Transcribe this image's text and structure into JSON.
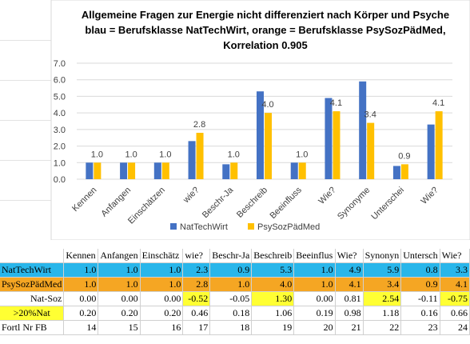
{
  "chart_data": {
    "type": "bar",
    "title": "Allgemeine Fragen zur Energie nicht differenziert nach Körper und  Psyche",
    "subtitle": "blau = Berufsklasse NatTechWirt, orange = Berufsklasse PsySozPädMed,",
    "subtitle2": "Korrelation 0.905",
    "categories": [
      "Kennen",
      "Anfangen",
      "Einschätzen",
      "wie?",
      "Beschr-Ja",
      "Beschreib",
      "Beeinfluss",
      "Wie?",
      "Synonyme",
      "Unterschei",
      "Wie?"
    ],
    "series": [
      {
        "name": "NatTechWirt",
        "color": "#4472c4",
        "values": [
          1.0,
          1.0,
          1.0,
          2.3,
          0.9,
          5.3,
          1.0,
          4.9,
          5.9,
          0.8,
          3.3
        ]
      },
      {
        "name": "PsySozPädMed",
        "color": "#ffc000",
        "values": [
          1.0,
          1.0,
          1.0,
          2.8,
          1.0,
          4.0,
          1.0,
          4.1,
          3.4,
          0.9,
          4.1
        ]
      }
    ],
    "data_labels": [
      "1.0",
      "1.0",
      "1.0",
      "2.8",
      "1.0",
      "4.0",
      "1.0",
      "4.1",
      "3.4",
      "0.9",
      "4.1"
    ],
    "y_ticks": [
      "0.0",
      "1.0",
      "2.0",
      "3.0",
      "4.0",
      "5.0",
      "6.0",
      "7.0"
    ],
    "ylim": [
      0,
      7
    ],
    "grid": true,
    "legend_position": "bottom"
  },
  "table": {
    "headers": [
      "",
      "Kennen",
      "Anfangen",
      "Einschätz",
      "wie?",
      "Beschr-Ja",
      "Beschreib",
      "Beeinflus",
      "Wie?",
      "Synonyn",
      "Untersch",
      "Wie?"
    ],
    "rows": [
      {
        "label": "NatTechWirt",
        "cells": [
          "1.0",
          "1.0",
          "1.0",
          "2.3",
          "0.9",
          "5.3",
          "1.0",
          "4.9",
          "5.9",
          "0.8",
          "3.3"
        ]
      },
      {
        "label": "PsySozPädMed",
        "cells": [
          "1.0",
          "1.0",
          "1.0",
          "2.8",
          "1.0",
          "4.0",
          "1.0",
          "4.1",
          "3.4",
          "0.9",
          "4.1"
        ]
      },
      {
        "label": "Nat-Soz",
        "cells": [
          "0.00",
          "0.00",
          "0.00",
          "-0.52",
          "-0.05",
          "1.30",
          "0.00",
          "0.81",
          "2.54",
          "-0.11",
          "-0.75"
        ]
      },
      {
        "label": ">20%Nat",
        "cells": [
          "0.20",
          "0.20",
          "0.20",
          "0.46",
          "0.18",
          "1.06",
          "0.19",
          "0.98",
          "1.18",
          "0.16",
          "0.66"
        ]
      },
      {
        "label": "Fortl Nr FB",
        "cells": [
          "14",
          "15",
          "16",
          "17",
          "18",
          "19",
          "20",
          "21",
          "22",
          "23",
          "24"
        ]
      }
    ],
    "highlight_natsoz": [
      false,
      false,
      false,
      true,
      false,
      true,
      false,
      false,
      true,
      false,
      true
    ],
    "highlight_color": "#ffff33"
  }
}
